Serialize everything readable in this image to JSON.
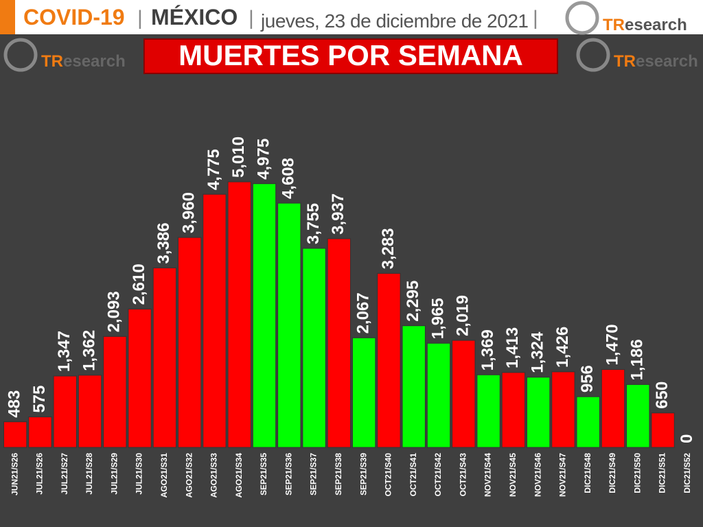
{
  "header": {
    "part1": "COVID-19",
    "sep": "|",
    "part2": "MÉXICO",
    "date": "jueves, 23 de diciembre de 2021",
    "logo_mark": "TR",
    "logo_rest": "esearch"
  },
  "chart_data": {
    "type": "bar",
    "title": "MUERTES POR SEMANA",
    "categories": [
      "JUN21/S26",
      "JUL21/S26",
      "JUL21/S27",
      "JUL21/S28",
      "JUL21/S29",
      "JUL21/S30",
      "AGO21/S31",
      "AGO21/S32",
      "AGO21/S33",
      "AGO21/S34",
      "SEP21/S35",
      "SEP21/S36",
      "SEP21/S37",
      "SEP21/S38",
      "SEP21/S39",
      "OCT21/S40",
      "OCT21/S41",
      "OCT21/S42",
      "OCT21/S43",
      "NOV21/S44",
      "NOV21/S45",
      "NOV21/S46",
      "NOV21/S47",
      "DIC21/S48",
      "DIC21/S49",
      "DIC21/S50",
      "DIC21/S51",
      "DIC21/S52"
    ],
    "values": [
      483,
      575,
      1347,
      1362,
      2093,
      2610,
      3386,
      3960,
      4775,
      5010,
      4975,
      4608,
      3755,
      3937,
      2067,
      3283,
      2295,
      1965,
      2019,
      1369,
      1413,
      1324,
      1426,
      956,
      1470,
      1186,
      650,
      0
    ],
    "value_labels": [
      "483",
      "575",
      "1,347",
      "1,362",
      "2,093",
      "2,610",
      "3,386",
      "3,960",
      "4,775",
      "5,010",
      "4,975",
      "4,608",
      "3,755",
      "3,937",
      "2,067",
      "3,283",
      "2,295",
      "1,965",
      "2,019",
      "1,369",
      "1,413",
      "1,324",
      "1,426",
      "956",
      "1,470",
      "1,186",
      "650",
      "0"
    ],
    "colors": [
      "#ff0000",
      "#ff0000",
      "#ff0000",
      "#ff0000",
      "#ff0000",
      "#ff0000",
      "#ff0000",
      "#ff0000",
      "#ff0000",
      "#ff0000",
      "#00ff00",
      "#00ff00",
      "#00ff00",
      "#ff0000",
      "#00ff00",
      "#ff0000",
      "#00ff00",
      "#00ff00",
      "#ff0000",
      "#00ff00",
      "#ff0000",
      "#00ff00",
      "#ff0000",
      "#00ff00",
      "#ff0000",
      "#00ff00",
      "#ff0000",
      "#ff0000"
    ]
  }
}
